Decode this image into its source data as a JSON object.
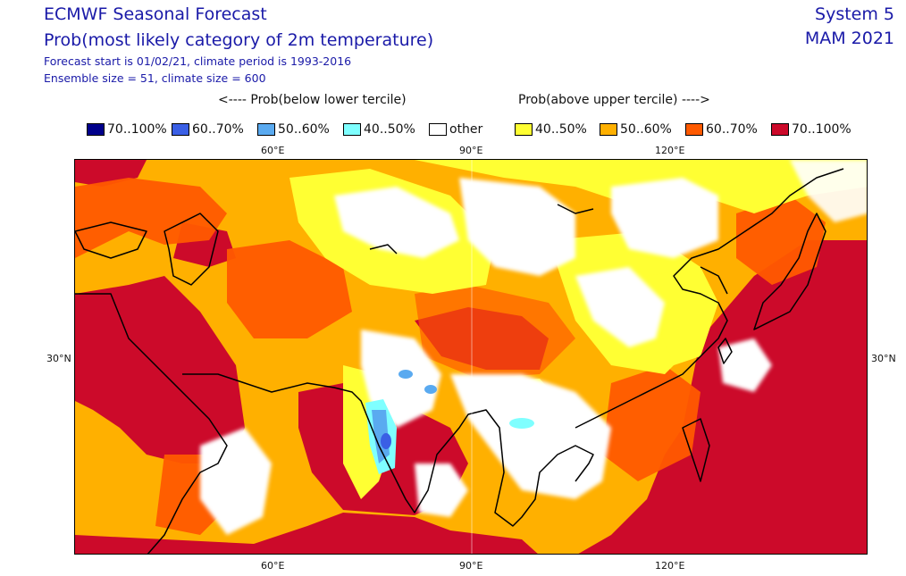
{
  "header": {
    "title": "ECMWF Seasonal Forecast",
    "subtitle": "Prob(most likely category of 2m temperature)",
    "forecast_line": "Forecast start is 01/02/21, climate period is 1993-2016",
    "ensemble_line": "Ensemble size = 51, climate size = 600",
    "system": "System 5",
    "season": "MAM 2021"
  },
  "legend": {
    "below_caption": "<---- Prob(below lower tercile)",
    "above_caption": "Prob(above upper tercile) ---->",
    "items": [
      {
        "label": "70..100%",
        "color": "#00008b"
      },
      {
        "label": "60..70%",
        "color": "#3a5fe5"
      },
      {
        "label": "50..60%",
        "color": "#5aaaf0"
      },
      {
        "label": "40..50%",
        "color": "#7fffff"
      },
      {
        "label": "other",
        "color": "#ffffff"
      },
      {
        "label": "40..50%",
        "color": "#ffff33"
      },
      {
        "label": "50..60%",
        "color": "#ffb000"
      },
      {
        "label": "60..70%",
        "color": "#ff5a00"
      },
      {
        "label": "70..100%",
        "color": "#cc0a2a"
      }
    ]
  },
  "axes": {
    "top_ticks": [
      "60°E",
      "90°E",
      "120°E"
    ],
    "bottom_ticks": [
      "60°E",
      "90°E",
      "120°E"
    ],
    "left_ticks": [
      "30°N"
    ],
    "right_ticks": [
      "30°N"
    ]
  },
  "colors": {
    "text": "#1a1aa8",
    "red": "#cc0a2a",
    "darkorange": "#ff5a00",
    "orange": "#ffb000",
    "yellow": "#ffff33",
    "cyan": "#7fffff",
    "lightblue": "#5aaaf0",
    "blue": "#3a5fe5",
    "navy": "#00008b",
    "coast": "#000000"
  }
}
